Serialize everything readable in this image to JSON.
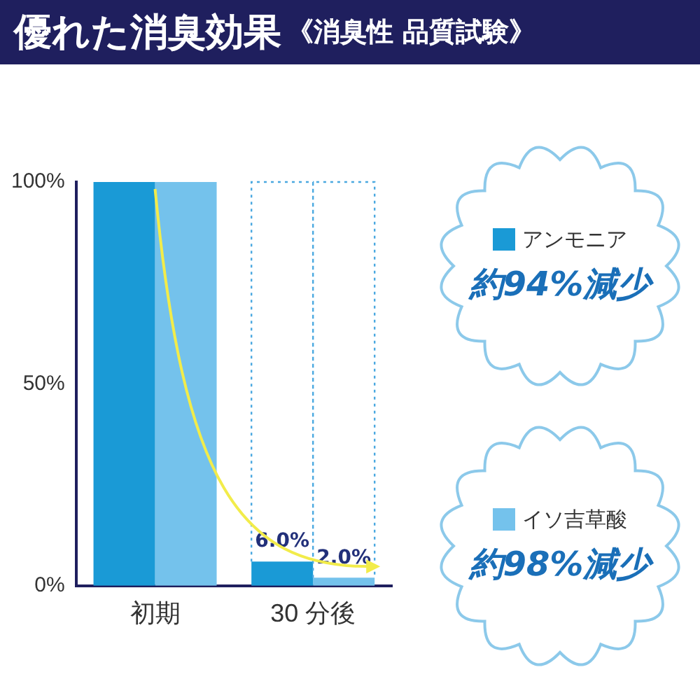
{
  "chart_data": {
    "type": "bar",
    "title": "優れた消臭効果",
    "subtitle": "《消臭性 品質試験》",
    "categories": [
      "初期",
      "30 分後"
    ],
    "series": [
      {
        "name": "アンモニア",
        "color": "#1a9ad6",
        "values": [
          100,
          6.0
        ],
        "value_labels": [
          null,
          "6.0%"
        ]
      },
      {
        "name": "イソ吉草酸",
        "color": "#74c2ec",
        "values": [
          100,
          2.0
        ],
        "value_labels": [
          null,
          "2.0%"
        ]
      }
    ],
    "ylim": [
      0,
      100
    ],
    "yticks": [
      {
        "value": 0,
        "label": "0%"
      },
      {
        "value": 50,
        "label": "50%"
      },
      {
        "value": 100,
        "label": "100%"
      }
    ],
    "grid": false,
    "legend": "right",
    "annotations": [
      "約94%減少",
      "約98%減少"
    ]
  }
}
